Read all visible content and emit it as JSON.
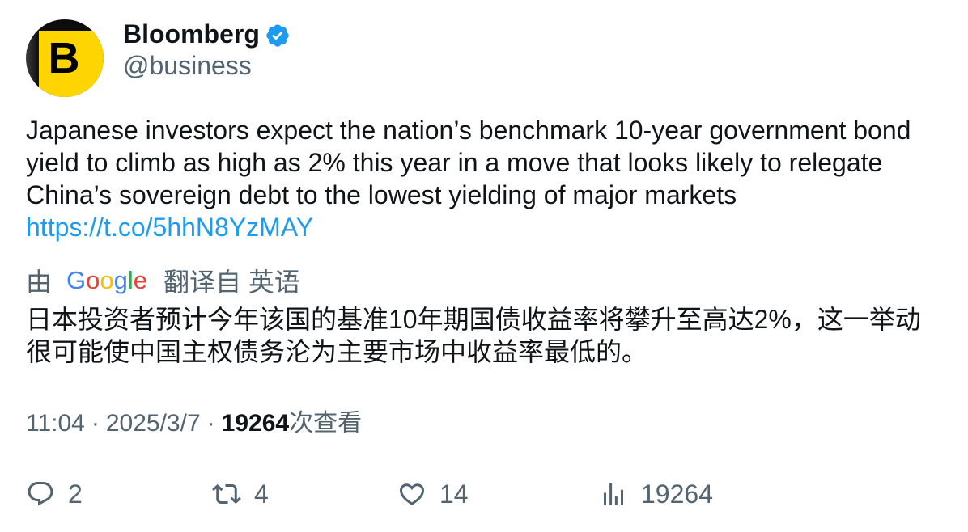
{
  "author": {
    "name": "Bloomberg",
    "handle": "@business",
    "avatar_letter": "B",
    "badge_icon": "verified-badge-icon"
  },
  "tweet": {
    "text_lines": [
      "Japanese investors expect the nation’s benchmark 10-year government bond",
      "yield to climb as high as 2% this year in a move that looks likely to relegate",
      "China’s sovereign debt to the lowest yielding of major markets"
    ],
    "link": "https://t.co/5hhN8YzMAY"
  },
  "translation": {
    "prefix": "由",
    "logo_text": "Google",
    "logo_colors": [
      "#4285F4",
      "#EA4335",
      "#FBBC05",
      "#4285F4",
      "#34A853",
      "#EA4335"
    ],
    "suffix": "翻译自 英语",
    "text_lines": [
      "日本投资者预计今年该国的基准10年期国债收益率将攀升至高达2%，这一举动",
      "很可能使中国主权债务沦为主要市场中收益率最低的。"
    ]
  },
  "meta": {
    "time": "11:04",
    "separator": "·",
    "date": "2025/3/7",
    "views_count": "19264",
    "views_label": "次查看"
  },
  "actions": {
    "reply": {
      "icon": "reply-icon",
      "count": "2"
    },
    "retweet": {
      "icon": "retweet-icon",
      "count": "4"
    },
    "like": {
      "icon": "heart-icon",
      "count": "14"
    },
    "views": {
      "icon": "analytics-icon",
      "count": "19264"
    }
  },
  "colors": {
    "text": "#0f1419",
    "secondary": "#536471",
    "link": "#1d9bf0",
    "verified": "#1d9bf0",
    "avatar_yellow": "#ffd500",
    "avatar_dark": "#0c0c0c"
  }
}
